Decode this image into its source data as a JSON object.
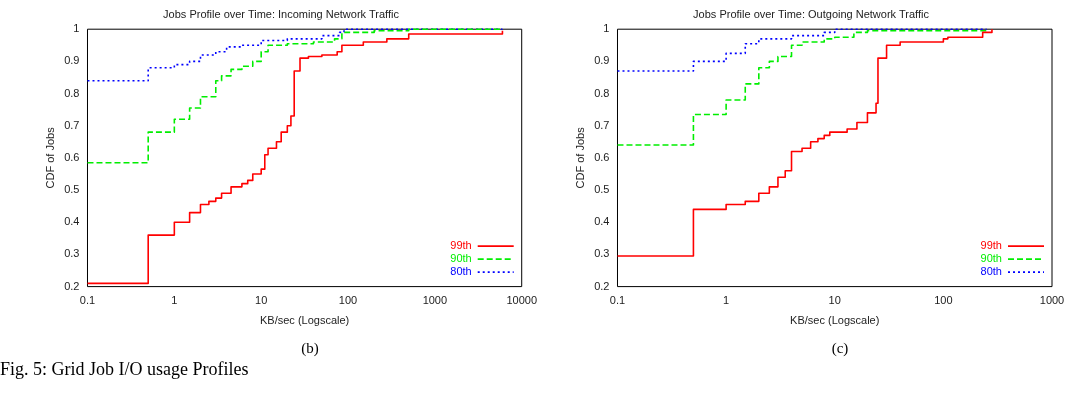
{
  "chart_data": [
    {
      "type": "step",
      "title": "Jobs Profile over Time: Incoming Network Traffic",
      "xlabel": "KB/sec (Logscale)",
      "ylabel": "CDF of Jobs",
      "log": "x",
      "xlim": [
        0.1,
        10000
      ],
      "xticks": [
        0.1,
        1,
        10,
        100,
        1000,
        10000
      ],
      "ylim": [
        0.2,
        1
      ],
      "yticks": [
        0.2,
        0.3,
        0.4,
        0.5,
        0.6,
        0.7,
        0.8,
        0.9,
        1
      ],
      "grid": false,
      "legend": "bottom right",
      "annotations": [
        "(b)",
        "Fig. 5: Grid Job I/O usage Profiles"
      ],
      "series": [
        {
          "name": "99th",
          "color": "#ff0000",
          "line_style": "solid",
          "x": [
            0.1,
            0.5,
            1,
            1.5,
            2,
            2.5,
            3,
            3.5,
            4.5,
            6,
            7,
            8,
            10,
            11,
            12,
            15,
            17,
            20,
            22,
            24,
            28,
            35,
            50,
            75,
            85,
            150,
            280,
            500,
            6000
          ],
          "values": [
            0.21,
            0.36,
            0.4,
            0.43,
            0.455,
            0.465,
            0.475,
            0.49,
            0.51,
            0.52,
            0.53,
            0.55,
            0.565,
            0.61,
            0.63,
            0.65,
            0.68,
            0.7,
            0.73,
            0.87,
            0.91,
            0.915,
            0.92,
            0.93,
            0.95,
            0.96,
            0.97,
            0.985,
            0.995
          ]
        },
        {
          "name": "90th",
          "color": "#00ee00",
          "line_style": "dashed",
          "x": [
            0.1,
            0.5,
            1,
            1.5,
            2,
            3,
            3.5,
            4.5,
            6,
            8,
            10,
            12,
            20,
            40,
            70,
            85,
            200,
            500,
            6000
          ],
          "values": [
            0.585,
            0.68,
            0.72,
            0.755,
            0.79,
            0.84,
            0.855,
            0.875,
            0.885,
            0.9,
            0.93,
            0.95,
            0.955,
            0.96,
            0.97,
            0.99,
            0.995,
            1,
            1
          ]
        },
        {
          "name": "80th",
          "color": "#0000ff",
          "line_style": "dotted",
          "x": [
            0.1,
            0.5,
            1,
            1.5,
            2,
            3,
            4,
            6,
            10,
            20,
            50,
            80,
            90,
            6000
          ],
          "values": [
            0.84,
            0.88,
            0.89,
            0.9,
            0.92,
            0.93,
            0.945,
            0.95,
            0.965,
            0.97,
            0.98,
            0.99,
            1,
            1
          ]
        }
      ]
    },
    {
      "type": "step",
      "title": "Jobs Profile over Time: Outgoing Network Traffic",
      "xlabel": "KB/sec (Logscale)",
      "ylabel": "CDF of Jobs",
      "log": "x",
      "xlim": [
        0.1,
        1000
      ],
      "xticks": [
        0.1,
        1,
        10,
        100,
        1000
      ],
      "ylim": [
        0.2,
        1
      ],
      "yticks": [
        0.2,
        0.3,
        0.4,
        0.5,
        0.6,
        0.7,
        0.8,
        0.9,
        1
      ],
      "grid": false,
      "legend": "bottom right",
      "annotations": [
        "(c)"
      ],
      "series": [
        {
          "name": "99th",
          "color": "#ff0000",
          "line_style": "solid",
          "x": [
            0.1,
            0.5,
            1,
            1.5,
            2,
            2.5,
            3,
            3.5,
            4,
            5,
            6,
            7,
            8,
            9,
            13,
            16,
            20,
            24,
            25,
            30,
            40,
            100,
            110,
            230,
            280
          ],
          "values": [
            0.295,
            0.44,
            0.455,
            0.465,
            0.49,
            0.51,
            0.54,
            0.56,
            0.62,
            0.63,
            0.65,
            0.66,
            0.67,
            0.68,
            0.69,
            0.71,
            0.74,
            0.77,
            0.91,
            0.95,
            0.96,
            0.97,
            0.975,
            0.99,
            1
          ]
        },
        {
          "name": "90th",
          "color": "#00ee00",
          "line_style": "dashed",
          "x": [
            0.1,
            0.5,
            1,
            1.5,
            2,
            2.5,
            3,
            4,
            5,
            8,
            10,
            15,
            20,
            250
          ],
          "values": [
            0.64,
            0.735,
            0.78,
            0.83,
            0.88,
            0.9,
            0.915,
            0.95,
            0.96,
            0.97,
            0.975,
            0.99,
            0.995,
            1
          ]
        },
        {
          "name": "80th",
          "color": "#0000ff",
          "line_style": "dotted",
          "x": [
            0.1,
            0.5,
            1,
            1.5,
            2,
            4,
            8,
            10,
            250
          ],
          "values": [
            0.87,
            0.9,
            0.925,
            0.955,
            0.97,
            0.98,
            0.99,
            1,
            1
          ]
        }
      ]
    }
  ]
}
